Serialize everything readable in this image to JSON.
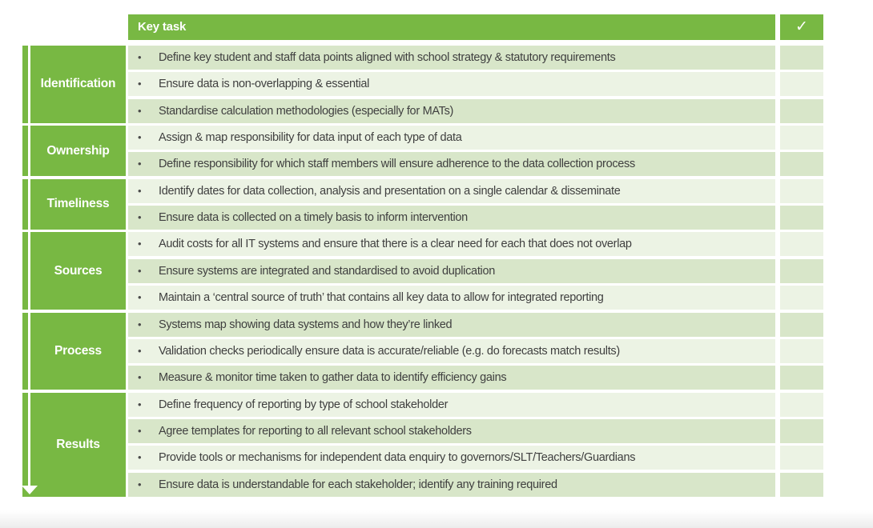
{
  "header": {
    "key_task": "Key task",
    "check": "✓"
  },
  "bullet": "•",
  "colors": {
    "green": "#78b843",
    "row_dark": "#d8e6c9",
    "row_light": "#ecf3e4",
    "task_text": "#3f3f3f",
    "header_text": "#ffffff"
  },
  "groups": [
    {
      "label": "Identification",
      "tasks": [
        "Define key student and staff data points aligned with school strategy & statutory requirements",
        "Ensure data is non-overlapping & essential",
        "Standardise calculation methodologies (especially for MATs)"
      ]
    },
    {
      "label": "Ownership",
      "tasks": [
        "Assign & map responsibility for data input of each type of data",
        "Define responsibility for which staff members will ensure adherence to the data collection process"
      ]
    },
    {
      "label": "Timeliness",
      "tasks": [
        "Identify dates for data collection, analysis and presentation on a single calendar & disseminate",
        "Ensure data is collected on a timely basis to inform intervention"
      ]
    },
    {
      "label": "Sources",
      "tasks": [
        "Audit costs for all IT systems and ensure that there is a clear need for each that does not overlap",
        "Ensure systems are integrated and standardised to avoid duplication",
        "Maintain a ‘central source of truth’ that contains all key data to allow for integrated reporting"
      ]
    },
    {
      "label": "Process",
      "tasks": [
        "Systems map showing data systems and how they’re linked",
        "Validation checks periodically ensure data is accurate/reliable (e.g. do forecasts match results)",
        "Measure & monitor time taken to gather data to identify efficiency gains"
      ]
    },
    {
      "label": "Results",
      "tasks": [
        "Define frequency of reporting by type of school stakeholder",
        "Agree templates for reporting to all relevant school stakeholders",
        "Provide tools or mechanisms for independent data enquiry to governors/SLT/Teachers/Guardians",
        "Ensure data is understandable for each stakeholder; identify any training required"
      ]
    }
  ]
}
